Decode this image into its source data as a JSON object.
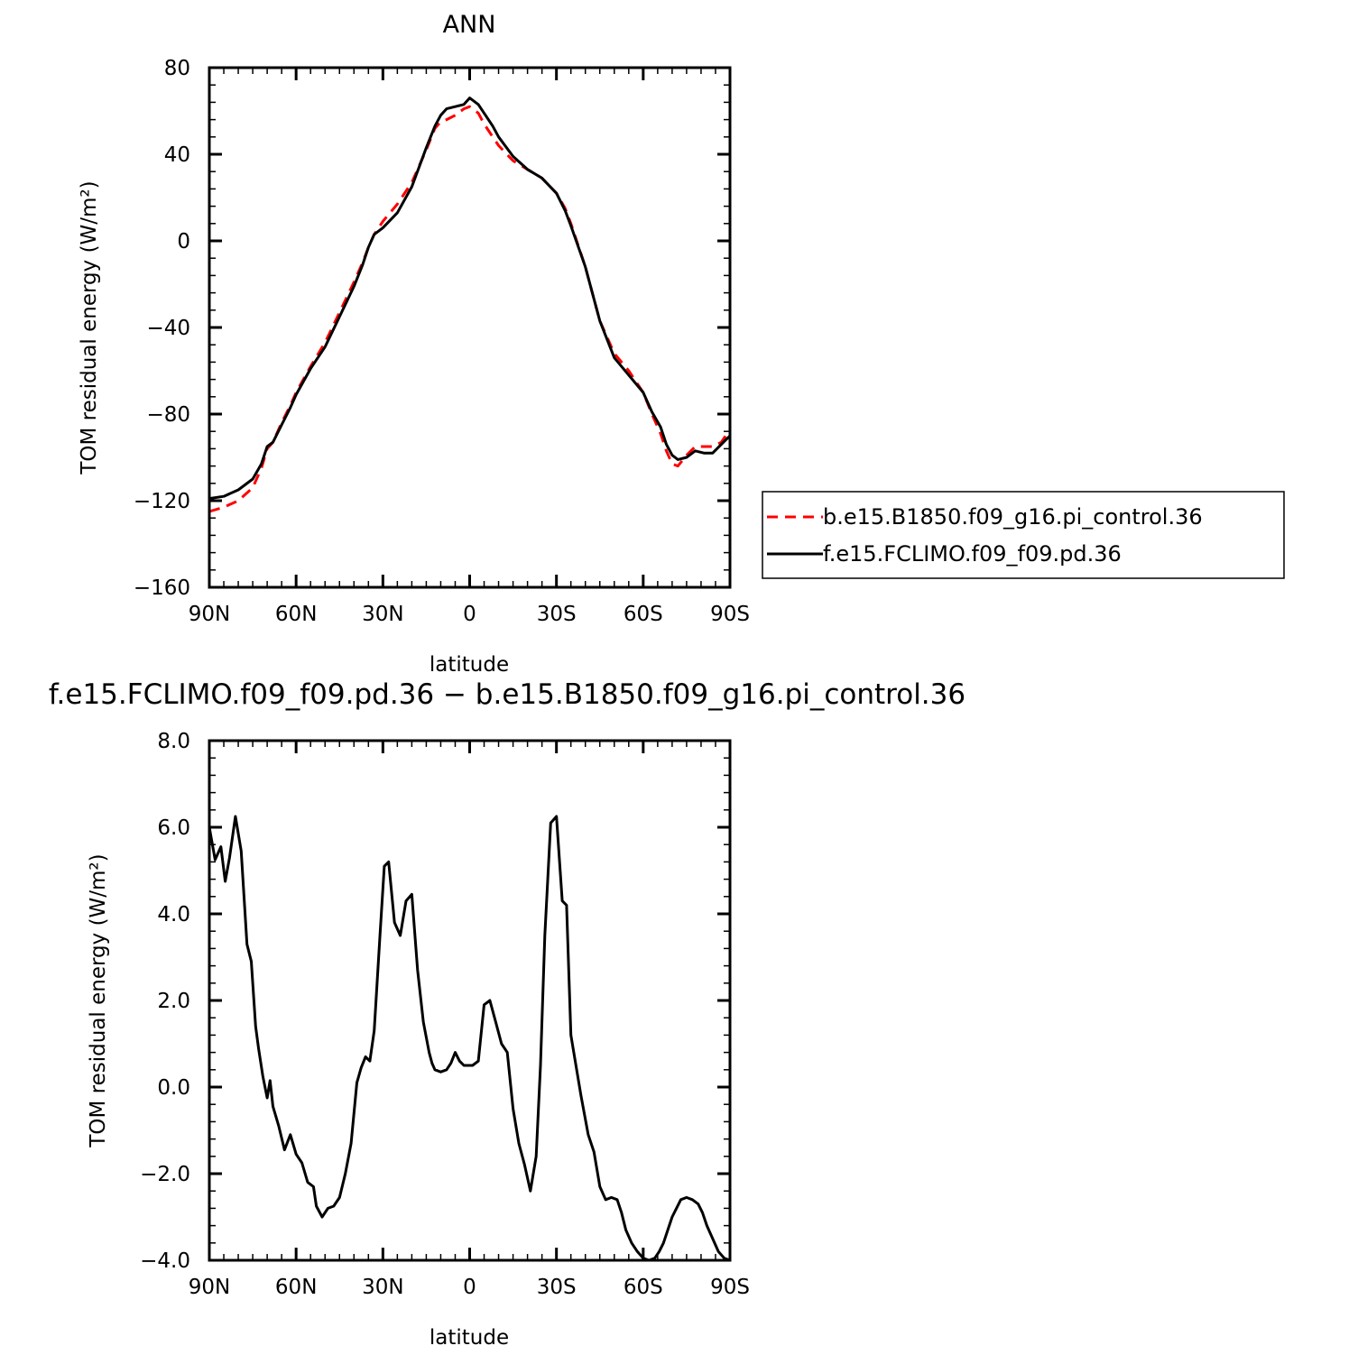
{
  "chart_data": [
    {
      "type": "line",
      "title": "ANN",
      "xlabel": "latitude",
      "ylabel": "TOM residual energy (W/m²)",
      "xlim": [
        -90,
        90
      ],
      "ylim": [
        -160,
        80
      ],
      "x_direction": "90N (left) to 90S (right); x = latitude in degrees, north positive",
      "xticks": [
        90,
        60,
        30,
        0,
        -30,
        -60,
        -90
      ],
      "xtick_labels": [
        "90N",
        "60N",
        "30N",
        "0",
        "30S",
        "60S",
        "90S"
      ],
      "yticks": [
        80,
        40,
        0,
        -40,
        -80,
        -120,
        -160
      ],
      "ytick_labels": [
        "80",
        "40",
        "0",
        "−40",
        "−80",
        "−120",
        "−160"
      ],
      "grid": false,
      "legend_position": "right",
      "series": [
        {
          "name": "b.e15.B1850.f09_g16.pi_control.36",
          "color": "#ff0000",
          "dash": "dashed",
          "x": [
            90,
            85,
            80,
            75,
            72,
            70,
            68,
            65,
            62,
            60,
            55,
            50,
            45,
            40,
            37,
            35,
            33,
            30,
            25,
            20,
            15,
            12,
            10,
            8,
            5,
            2,
            0,
            -3,
            -5,
            -8,
            -10,
            -15,
            -20,
            -25,
            -30,
            -33,
            -35,
            -40,
            -45,
            -50,
            -55,
            -60,
            -63,
            -66,
            -68,
            -70,
            -72,
            -75,
            -78,
            -81,
            -84,
            -87,
            -90
          ],
          "y": [
            -125,
            -123,
            -120,
            -114,
            -105,
            -96,
            -93,
            -84,
            -76,
            -70,
            -58,
            -47,
            -33,
            -19,
            -10,
            -3,
            3,
            9,
            17,
            27,
            42,
            52,
            55,
            56,
            58,
            61,
            62,
            59,
            54,
            48,
            44,
            37,
            33,
            29,
            22,
            15,
            8,
            -12,
            -37,
            -52,
            -60,
            -70,
            -80,
            -89,
            -97,
            -103,
            -104,
            -99,
            -95,
            -95,
            -95,
            -93,
            -87
          ]
        },
        {
          "name": "f.e15.FCLIMO.f09_f09.pd.36",
          "color": "#000000",
          "dash": "solid",
          "x": [
            90,
            85,
            80,
            75,
            72,
            70,
            68,
            65,
            62,
            60,
            55,
            50,
            45,
            40,
            37,
            35,
            33,
            30,
            25,
            20,
            15,
            12,
            10,
            8,
            5,
            2,
            0,
            -3,
            -5,
            -8,
            -10,
            -15,
            -20,
            -25,
            -30,
            -33,
            -35,
            -40,
            -45,
            -50,
            -55,
            -60,
            -63,
            -66,
            -68,
            -70,
            -72,
            -75,
            -78,
            -81,
            -84,
            -87,
            -90
          ],
          "y": [
            -119,
            -118,
            -115,
            -110,
            -103,
            -95,
            -93,
            -85,
            -77,
            -71,
            -59,
            -49,
            -35,
            -21,
            -11,
            -3,
            3,
            6,
            13,
            25,
            43,
            53,
            58,
            61,
            62,
            63,
            66,
            63,
            59,
            53,
            48,
            39,
            33,
            29,
            22,
            14,
            7,
            -12,
            -37,
            -54,
            -62,
            -70,
            -79,
            -86,
            -94,
            -99,
            -101,
            -100,
            -97,
            -98,
            -98,
            -94,
            -90
          ]
        }
      ]
    },
    {
      "type": "line",
      "title": "f.e15.FCLIMO.f09_f09.pd.36 − b.e15.B1850.f09_g16.pi_control.36",
      "xlabel": "latitude",
      "ylabel": "TOM residual energy (W/m²)",
      "xlim": [
        -90,
        90
      ],
      "ylim": [
        -4,
        8
      ],
      "x_direction": "90N (left) to 90S (right); x = latitude in degrees, north positive",
      "xticks": [
        90,
        60,
        30,
        0,
        -30,
        -60,
        -90
      ],
      "xtick_labels": [
        "90N",
        "60N",
        "30N",
        "0",
        "30S",
        "60S",
        "90S"
      ],
      "yticks": [
        8,
        6,
        4,
        2,
        0,
        -2,
        -4
      ],
      "ytick_labels": [
        "8.0",
        "6.0",
        "4.0",
        "2.0",
        "0.0",
        "−2.0",
        "−4.0"
      ],
      "grid": false,
      "series": [
        {
          "color": "#000000",
          "dash": "solid",
          "x": [
            90,
            88,
            86,
            84.5,
            83,
            81,
            79,
            77,
            75.5,
            74,
            73,
            71.5,
            70,
            69,
            68,
            66,
            64,
            62,
            60,
            58,
            56,
            54,
            53,
            51,
            49,
            47,
            45,
            43,
            41,
            39,
            37.5,
            36,
            34.5,
            33,
            31,
            29.5,
            28,
            26,
            24,
            22,
            20,
            18,
            16,
            14,
            13,
            12,
            10,
            8,
            6.5,
            5,
            3.5,
            2,
            0,
            -1,
            -3,
            -5,
            -7,
            -9,
            -11,
            -13,
            -15,
            -17,
            -19,
            -21,
            -23,
            -24.5,
            -26,
            -28,
            -30,
            -32,
            -33.5,
            -35,
            -36.5,
            -38.5,
            -41,
            -43,
            -45,
            -47,
            -49,
            -51,
            -52.5,
            -54,
            -56,
            -58,
            -60,
            -62,
            -64,
            -65.5,
            -67,
            -68.5,
            -70,
            -71.5,
            -73,
            -75,
            -77,
            -79,
            -80.5,
            -82,
            -84,
            -86,
            -88,
            -90
          ],
          "y": [
            6.0,
            5.25,
            5.55,
            4.75,
            5.3,
            6.25,
            5.45,
            3.3,
            2.9,
            1.4,
            0.9,
            0.25,
            -0.25,
            0.15,
            -0.45,
            -0.9,
            -1.45,
            -1.1,
            -1.55,
            -1.75,
            -2.2,
            -2.3,
            -2.75,
            -3.0,
            -2.8,
            -2.75,
            -2.55,
            -2.0,
            -1.3,
            0.1,
            0.45,
            0.7,
            0.6,
            1.3,
            3.5,
            5.1,
            5.2,
            3.8,
            3.5,
            4.3,
            4.45,
            2.7,
            1.5,
            0.8,
            0.55,
            0.4,
            0.35,
            0.4,
            0.55,
            0.8,
            0.6,
            0.5,
            0.5,
            0.5,
            0.6,
            1.9,
            2.0,
            1.5,
            1.0,
            0.8,
            -0.5,
            -1.3,
            -1.8,
            -2.4,
            -1.6,
            0.5,
            3.5,
            6.1,
            6.25,
            4.3,
            4.2,
            1.2,
            0.6,
            -0.2,
            -1.1,
            -1.5,
            -2.3,
            -2.6,
            -2.55,
            -2.6,
            -2.9,
            -3.3,
            -3.6,
            -3.8,
            -3.95,
            -4.0,
            -3.95,
            -3.8,
            -3.6,
            -3.3,
            -3.0,
            -2.8,
            -2.6,
            -2.55,
            -2.6,
            -2.7,
            -2.9,
            -3.2,
            -3.5,
            -3.8,
            -3.95,
            -4.0
          ]
        }
      ]
    }
  ]
}
